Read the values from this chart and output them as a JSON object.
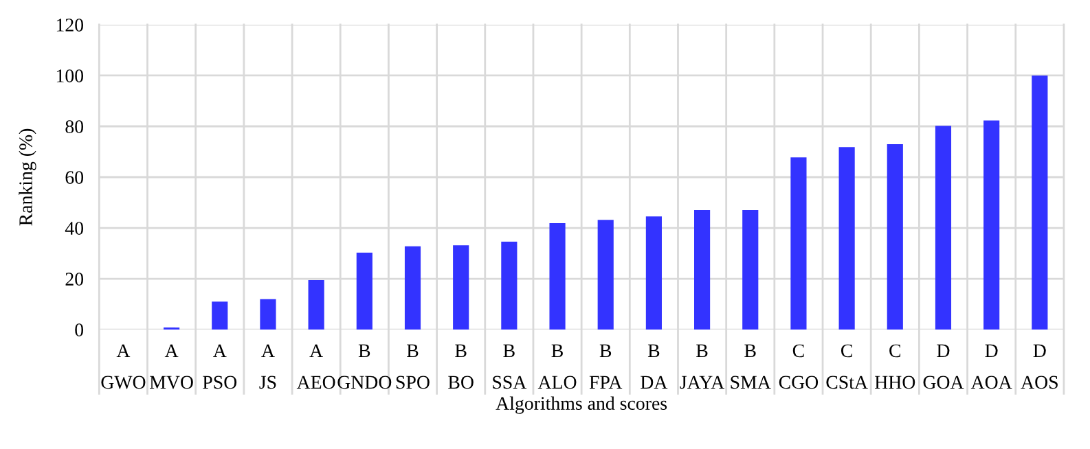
{
  "chart_data": {
    "type": "bar",
    "xlabel": "Algorithms and scores",
    "ylabel": "Ranking (%)",
    "categories": [
      "GWO",
      "MVO",
      "PSO",
      "JS",
      "AEO",
      "GNDO",
      "SPO",
      "BO",
      "SSA",
      "ALO",
      "FPA",
      "DA",
      "JAYA",
      "SMA",
      "CGO",
      "CStA",
      "HHO",
      "GOA",
      "AOA",
      "AOS"
    ],
    "values": [
      0,
      0.8,
      11,
      12,
      19.5,
      30.3,
      32.8,
      33.2,
      34.6,
      41.9,
      43.2,
      44.5,
      47,
      47,
      67.8,
      71.8,
      73,
      80.2,
      82.3,
      100
    ],
    "color": "#3333ff",
    "ylim": [
      0,
      120
    ],
    "yticks": [
      0,
      20,
      40,
      60,
      80,
      100,
      120
    ],
    "grid": true,
    "annotations": [
      "A",
      "A",
      "A",
      "A",
      "A",
      "B",
      "B",
      "B",
      "B",
      "B",
      "B",
      "B",
      "B",
      "B",
      "C",
      "C",
      "C",
      "D",
      "D",
      "D"
    ]
  }
}
